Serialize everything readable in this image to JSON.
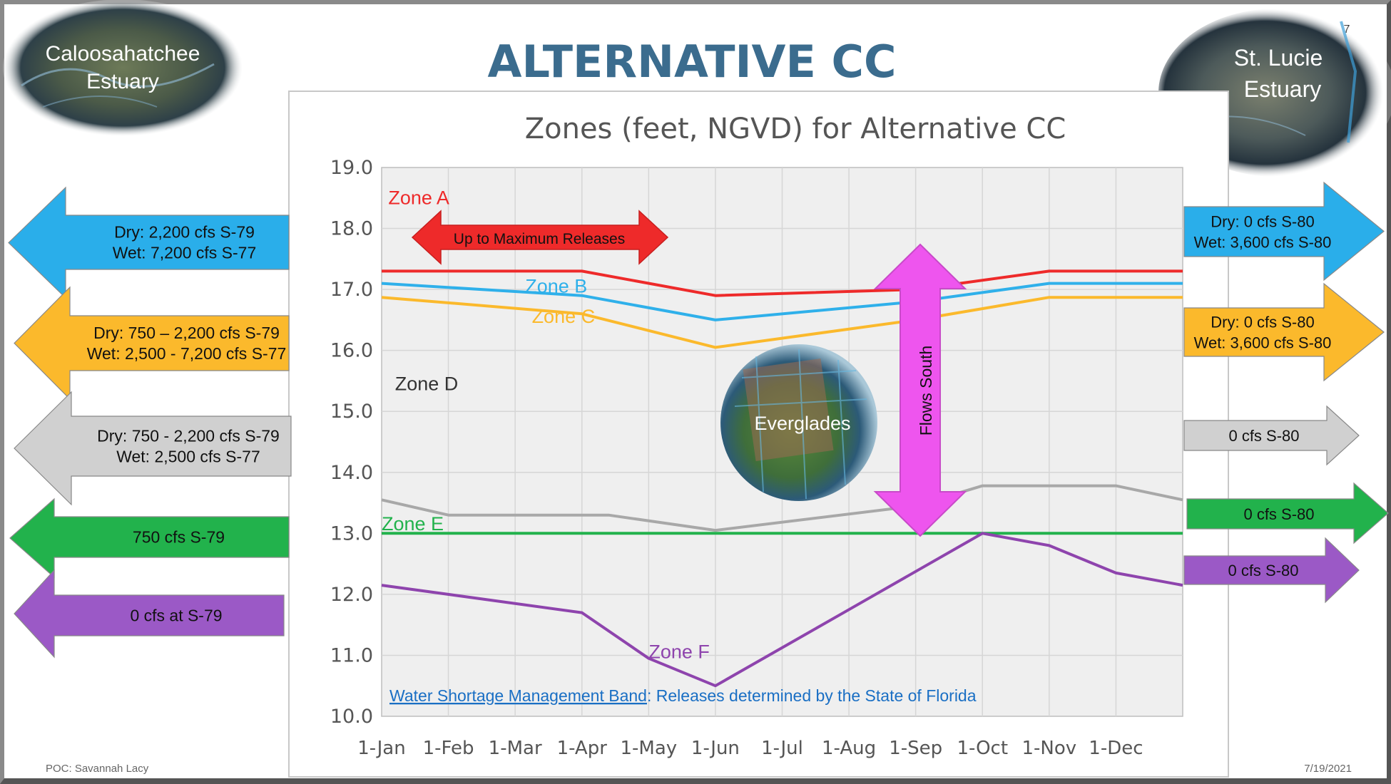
{
  "slide": {
    "title": "ALTERNATIVE CC",
    "page_number": "7",
    "footer_left": "POC: Savannah Lacy",
    "footer_right": "7/19/2021",
    "left_estuary": [
      "Caloosahatchee",
      "Estuary"
    ],
    "right_estuary": [
      "St. Lucie",
      "Estuary"
    ],
    "everglades_label": "Everglades",
    "flows_label": "Flows South",
    "max_release_label": "Up to Maximum Releases",
    "note_link": "Water Shortage Management Band",
    "note_rest": ": Releases determined by the State of Florida",
    "colors": {
      "title": "#3b6c8e",
      "zone_a": "#ee2a2a",
      "zone_b": "#2fb0ea",
      "zone_c": "#fbb92c",
      "zone_d": "#a8a8a8",
      "zone_e": "#22b24c",
      "zone_f": "#8e44ad",
      "magenta": "#ee55ee",
      "plot_bg": "#efefef"
    }
  },
  "left_arrows": [
    {
      "lines": [
        "Dry: 2,200 cfs S-79",
        "Wet:  7,200 cfs S-77"
      ],
      "color": "#2aaeea"
    },
    {
      "lines": [
        "Dry: 750 – 2,200 cfs S-79",
        "Wet: 2,500 - 7,200 cfs S-77"
      ],
      "color": "#fbb92c"
    },
    {
      "lines": [
        "Dry: 750 - 2,200 cfs  S-79",
        "Wet: 2,500 cfs S-77"
      ],
      "color": "#d0d0d0"
    },
    {
      "lines": [
        "750 cfs S-79"
      ],
      "color": "#22b24c"
    },
    {
      "lines": [
        "0 cfs at S-79"
      ],
      "color": "#9b59c6"
    }
  ],
  "right_arrows": [
    {
      "lines": [
        "Dry: 0 cfs S-80",
        "Wet: 3,600 cfs S-80"
      ],
      "color": "#2aaeea"
    },
    {
      "lines": [
        "Dry: 0 cfs S-80",
        "Wet: 3,600 cfs S-80"
      ],
      "color": "#fbb92c"
    },
    {
      "lines": [
        "0 cfs S-80"
      ],
      "color": "#d0d0d0"
    },
    {
      "lines": [
        "0 cfs S-80"
      ],
      "color": "#22b24c"
    },
    {
      "lines": [
        "0 cfs S-80"
      ],
      "color": "#9b59c6"
    }
  ],
  "chart_data": {
    "type": "line",
    "title": "Zones (feet, NGVD) for Alternative CC",
    "x_ticks": [
      "1-Jan",
      "1-Feb",
      "1-Mar",
      "1-Apr",
      "1-May",
      "1-Jun",
      "1-Jul",
      "1-Aug",
      "1-Sep",
      "1-Oct",
      "1-Nov",
      "1-Dec"
    ],
    "x_range": [
      0,
      12
    ],
    "ylim": [
      10.0,
      19.0
    ],
    "y_ticks": [
      "10.0",
      "11.0",
      "12.0",
      "13.0",
      "14.0",
      "15.0",
      "16.0",
      "17.0",
      "18.0",
      "19.0"
    ],
    "grid": true,
    "series": [
      {
        "name": "Zone A",
        "color": "#ee2a2a",
        "x": [
          0,
          3,
          5,
          8,
          10,
          12
        ],
        "y": [
          17.3,
          17.3,
          16.9,
          17.0,
          17.3,
          17.3
        ]
      },
      {
        "name": "Zone B",
        "color": "#2fb0ea",
        "x": [
          0,
          3,
          5,
          8,
          10,
          12
        ],
        "y": [
          17.1,
          16.9,
          16.5,
          16.8,
          17.1,
          17.1
        ]
      },
      {
        "name": "Zone C",
        "color": "#fbb92c",
        "x": [
          0,
          3,
          5,
          8,
          10,
          12
        ],
        "y": [
          16.87,
          16.6,
          16.05,
          16.5,
          16.87,
          16.87
        ]
      },
      {
        "name": "Zone D",
        "color": "#a8a8a8",
        "x": [
          0,
          1,
          3.4,
          5,
          8,
          9,
          11,
          12
        ],
        "y": [
          13.55,
          13.3,
          13.3,
          13.05,
          13.45,
          13.78,
          13.78,
          13.55
        ]
      },
      {
        "name": "Zone E",
        "color": "#22b24c",
        "x": [
          0,
          12
        ],
        "y": [
          13.0,
          13.0
        ]
      },
      {
        "name": "Zone F",
        "color": "#8e44ad",
        "x": [
          0,
          3,
          4,
          5,
          7,
          9,
          10,
          11,
          12
        ],
        "y": [
          12.15,
          11.7,
          10.95,
          10.5,
          11.75,
          13.0,
          12.8,
          12.35,
          12.15
        ]
      }
    ],
    "zone_labels": [
      {
        "text": "Zone A",
        "x": 0.1,
        "y": 18.4,
        "color": "#ee2a2a"
      },
      {
        "text": "Zone B",
        "x": 2.15,
        "y": 16.95,
        "color": "#2fb0ea"
      },
      {
        "text": "Zone C",
        "x": 2.25,
        "y": 16.45,
        "color": "#fbb92c"
      },
      {
        "text": "Zone D",
        "x": 0.2,
        "y": 15.35,
        "color": "#333333"
      },
      {
        "text": "Zone E",
        "x": 0.0,
        "y": 13.05,
        "color": "#22b24c"
      },
      {
        "text": "Zone F",
        "x": 4.0,
        "y": 10.95,
        "color": "#8e44ad"
      }
    ]
  }
}
